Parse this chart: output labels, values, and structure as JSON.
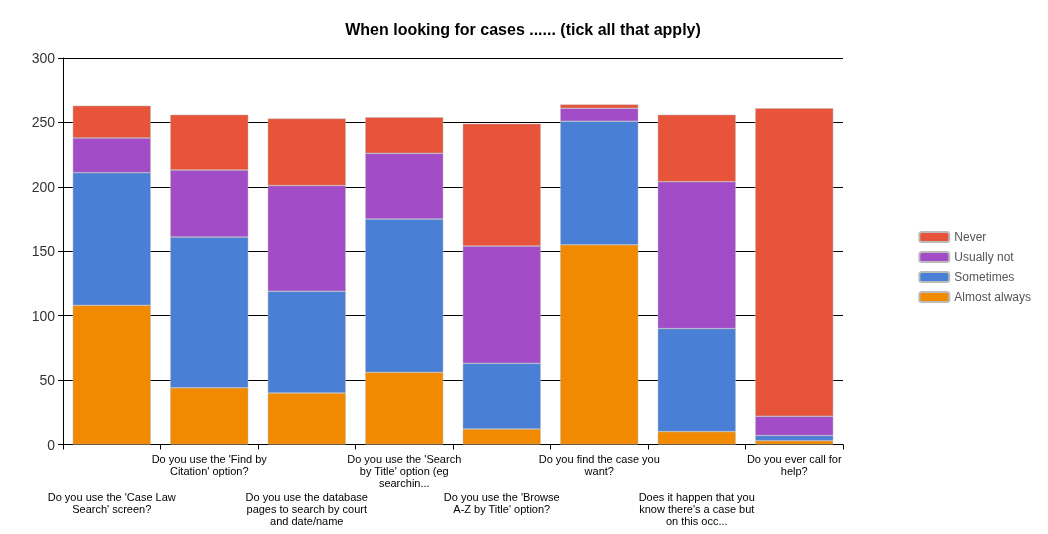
{
  "chart_data": {
    "type": "bar",
    "title": "When looking for cases ...... (tick all that apply)",
    "stacked": true,
    "categories": [
      "Do you use the 'Case Law Search' screen?",
      "Do you use the 'Find by Citation' option?",
      "Do you use the database pages to search by court and date/name",
      "Do you use the 'Search by Title' option (eg searchin...",
      "Do you use the 'Browse A-Z by Title' option?",
      "Do you find the case you want?",
      "Does it happen that you know there's a case but on this occ...",
      "Do you ever call for help?"
    ],
    "series": [
      {
        "name": "Almost always",
        "color": "#f28a00",
        "values": [
          108,
          44,
          40,
          56,
          12,
          155,
          10,
          3
        ]
      },
      {
        "name": "Sometimes",
        "color": "#4a7fd6",
        "values": [
          103,
          117,
          79,
          119,
          51,
          96,
          80,
          4
        ]
      },
      {
        "name": "Usually not",
        "color": "#a24cc8",
        "values": [
          27,
          52,
          82,
          51,
          91,
          10,
          114,
          15
        ]
      },
      {
        "name": "Never",
        "color": "#e8543a",
        "values": [
          25,
          43,
          52,
          28,
          95,
          3,
          52,
          239
        ]
      }
    ],
    "ylim": [
      0,
      300
    ],
    "yticks": [
      0,
      50,
      100,
      150,
      200,
      250,
      300
    ],
    "grid": "y",
    "legend": "right"
  }
}
